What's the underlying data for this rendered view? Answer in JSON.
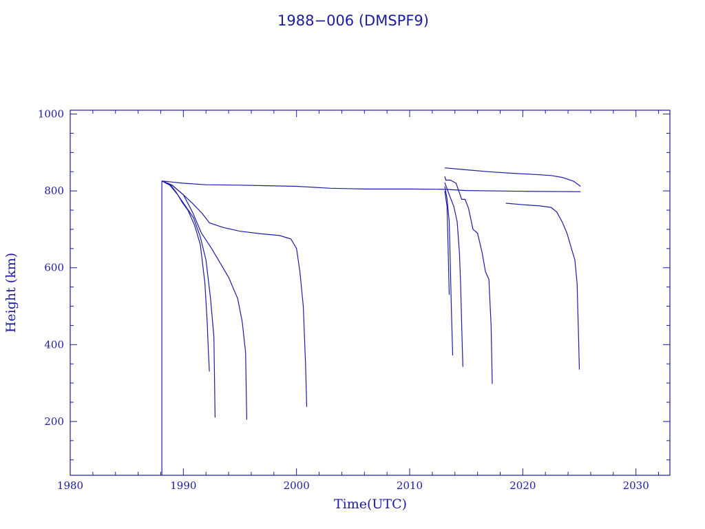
{
  "chart_data": {
    "type": "line",
    "title": "1988−006 (DMSPF9)",
    "xlabel": "Time(UTC)",
    "ylabel": "Height (km)",
    "xlim": [
      1980,
      2033
    ],
    "ylim": [
      60,
      1010
    ],
    "x_ticks": [
      1980,
      1990,
      2000,
      2010,
      2020,
      2030
    ],
    "y_ticks": [
      200,
      400,
      600,
      800,
      1000
    ],
    "x_minor_step": 2,
    "y_minor_step": 50,
    "grid": false,
    "color": "#1a1aa6",
    "series": [
      {
        "x": [
          1988.1,
          1988.1
        ],
        "y": [
          60,
          826
        ]
      },
      {
        "x": [
          1988.1,
          1990,
          1992,
          1995,
          2000,
          2003,
          2006,
          2010,
          2013.2,
          2015,
          2020,
          2025.1
        ],
        "y": [
          826,
          820,
          816,
          815,
          812,
          807,
          805,
          805,
          804,
          801,
          799,
          798
        ]
      },
      {
        "x": [
          1988.1,
          1988.8,
          1989.4,
          1989.9,
          1990.4,
          1991.0,
          1991.5,
          1991.9,
          1992.1,
          1992.2,
          1992.3
        ],
        "y": [
          826,
          818,
          795,
          770,
          750,
          710,
          660,
          560,
          460,
          390,
          330
        ]
      },
      {
        "x": [
          1988.1,
          1988.8,
          1989.5,
          1990.2,
          1990.9,
          1991.5,
          1992.0,
          1992.4,
          1992.7,
          1992.8
        ],
        "y": [
          826,
          815,
          790,
          760,
          730,
          680,
          620,
          520,
          420,
          210
        ]
      },
      {
        "x": [
          1988.1,
          1989.0,
          1990.0,
          1990.8,
          1991.6,
          1992.5,
          1993.3,
          1994.0,
          1994.8,
          1995.2,
          1995.5,
          1995.6
        ],
        "y": [
          826,
          815,
          790,
          745,
          690,
          650,
          610,
          575,
          520,
          460,
          380,
          205
        ]
      },
      {
        "x": [
          1988.1,
          1989.0,
          1990.0,
          1990.9,
          1991.7,
          1992.3,
          1993.5,
          1995.0,
          1997.0,
          1998.5,
          1999.5,
          2000.0,
          2000.3,
          2000.6,
          2000.8,
          2000.9
        ],
        "y": [
          826,
          815,
          790,
          765,
          740,
          717,
          705,
          695,
          688,
          684,
          675,
          650,
          590,
          500,
          350,
          238
        ]
      },
      {
        "x": [
          2013.1,
          2013.3,
          2013.4,
          2013.5
        ],
        "y": [
          800,
          760,
          650,
          530
        ]
      },
      {
        "x": [
          2013.1,
          2013.3,
          2013.5,
          2013.6,
          2013.7,
          2013.8
        ],
        "y": [
          812,
          780,
          720,
          600,
          480,
          372
        ]
      },
      {
        "x": [
          2013.1,
          2013.5,
          2013.9,
          2014.2,
          2014.4,
          2014.5,
          2014.6,
          2014.7
        ],
        "y": [
          822,
          790,
          760,
          720,
          640,
          560,
          450,
          342
        ]
      },
      {
        "x": [
          2013.1,
          2013.2,
          2013.6,
          2014.1,
          2014.6,
          2014.9,
          2015.2,
          2015.6,
          2016.0,
          2016.4,
          2016.7,
          2017.0,
          2017.2,
          2017.3
        ],
        "y": [
          838,
          828,
          828,
          820,
          778,
          778,
          755,
          700,
          690,
          640,
          590,
          570,
          450,
          298
        ]
      },
      {
        "x": [
          2013.1,
          2015,
          2017,
          2019,
          2021,
          2022.5,
          2023.5,
          2024.5,
          2025.1
        ],
        "y": [
          860,
          855,
          850,
          846,
          843,
          840,
          835,
          825,
          812
        ]
      },
      {
        "x": [
          2018.5,
          2020,
          2021.5,
          2022.5,
          2023.0,
          2023.5,
          2023.9,
          2024.3,
          2024.6,
          2024.8,
          2024.9,
          2025.0
        ],
        "y": [
          768,
          764,
          761,
          757,
          745,
          718,
          690,
          650,
          620,
          560,
          450,
          335
        ]
      }
    ]
  }
}
